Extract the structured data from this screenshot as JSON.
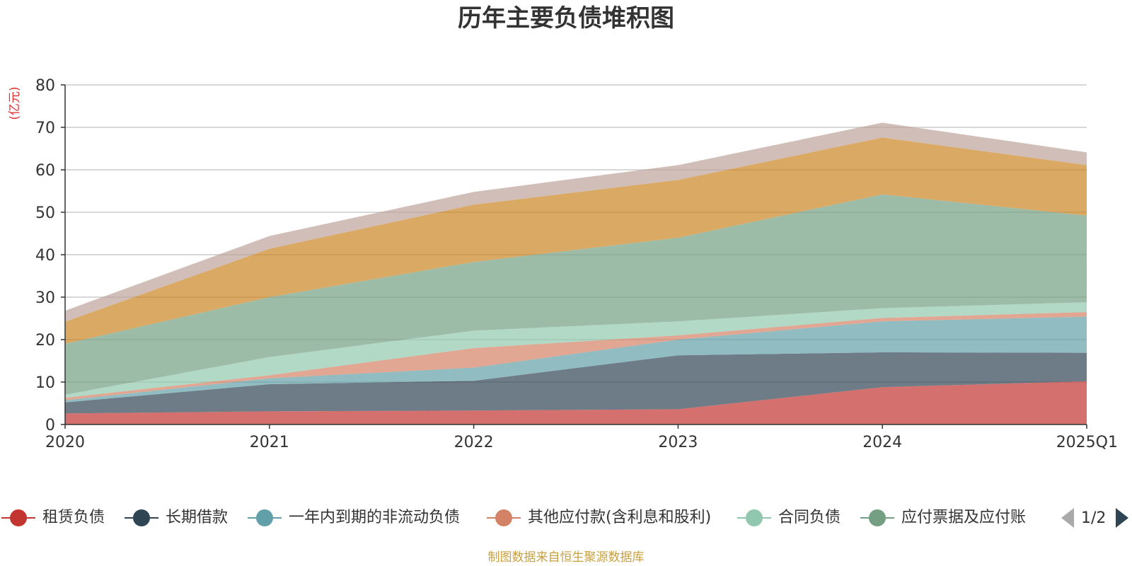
{
  "chart_data": {
    "type": "area",
    "stacked": true,
    "title": "历年主要负债堆积图",
    "ylabel": "(亿元)",
    "xlabel": "",
    "categories": [
      "2020",
      "2021",
      "2022",
      "2023",
      "2024",
      "2025Q1"
    ],
    "ylim": [
      0,
      80
    ],
    "yticks": [
      0,
      10,
      20,
      30,
      40,
      50,
      60,
      70,
      80
    ],
    "grid": true,
    "legend_position": "bottom",
    "series": [
      {
        "name": "租赁负债",
        "color": "#c23531",
        "values": [
          2.6,
          3.1,
          3.3,
          3.6,
          8.8,
          10.2
        ]
      },
      {
        "name": "长期借款",
        "color": "#2f4554",
        "values": [
          2.6,
          6.4,
          7.0,
          12.7,
          8.2,
          6.7
        ]
      },
      {
        "name": "一年内到期的非流动负债",
        "color": "#61a0a8",
        "values": [
          0.5,
          1.4,
          3.1,
          3.7,
          7.3,
          8.5
        ]
      },
      {
        "name": "其他应付款(含利息和股利)",
        "color": "#d48265",
        "values": [
          0.6,
          0.7,
          4.6,
          1.0,
          0.8,
          1.1
        ]
      },
      {
        "name": "合同负债",
        "color": "#91c7ae",
        "values": [
          0.7,
          4.3,
          4.1,
          3.3,
          2.3,
          2.3
        ]
      },
      {
        "name": "应付票据及应付账款",
        "color": "#749f83",
        "values": [
          12.0,
          14.1,
          16.2,
          19.7,
          26.8,
          20.4
        ]
      },
      {
        "name": "",
        "color": "#ca8622",
        "values": [
          5.2,
          11.4,
          13.5,
          13.6,
          13.4,
          11.9
        ]
      },
      {
        "name": "",
        "color": "#bda29a",
        "values": [
          2.6,
          3.0,
          3.0,
          3.5,
          3.5,
          3.0
        ]
      }
    ]
  },
  "legend": {
    "visible_items": [
      "租赁负债",
      "长期借款",
      "一年内到期的非流动负债",
      "其他应付款(含利息和股利)",
      "合同负债",
      "应付票据及应付账"
    ],
    "page_indicator": "1/2"
  },
  "footer": {
    "source_note": "制图数据来自恒生聚源数据库"
  }
}
